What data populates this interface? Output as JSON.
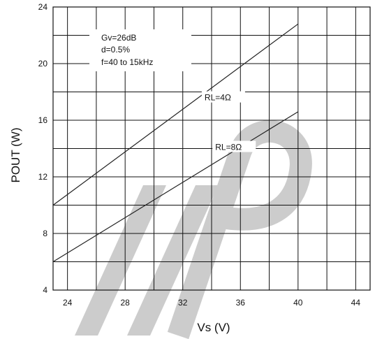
{
  "chart_data": {
    "type": "line",
    "title": "",
    "xlabel": "Vs (V)",
    "ylabel": "POUT (W)",
    "xlim": [
      23,
      45
    ],
    "ylim": [
      4,
      24
    ],
    "x_ticks": [
      24,
      28,
      32,
      36,
      40,
      44
    ],
    "y_ticks": [
      4,
      8,
      12,
      16,
      20,
      24
    ],
    "grid": true,
    "series": [
      {
        "name": "RL=4Ω",
        "x": [
          23,
          40
        ],
        "y": [
          10,
          22.8
        ]
      },
      {
        "name": "RL=8Ω",
        "x": [
          23,
          40
        ],
        "y": [
          6,
          16.6
        ]
      }
    ],
    "annotations": [
      "Gv=26dB",
      "d=0.5%",
      "f=40 to 15kHz"
    ],
    "watermark": "IIP",
    "colors": {
      "line": "#222222",
      "grid": "#111111",
      "watermark": "#cccccc"
    }
  }
}
